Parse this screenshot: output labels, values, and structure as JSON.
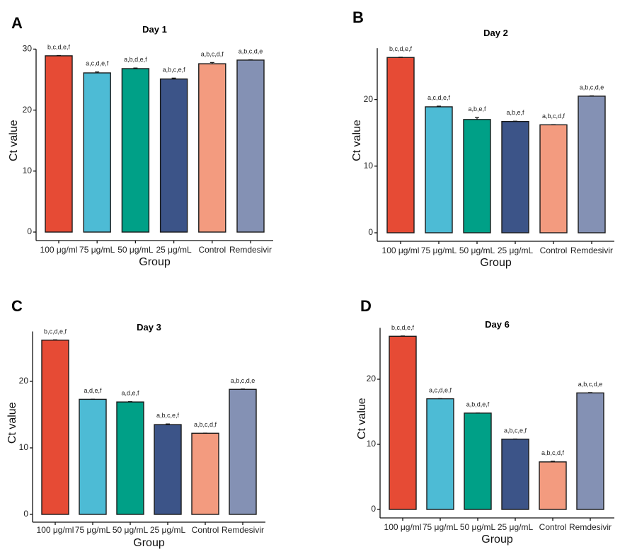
{
  "figure": {
    "palette": [
      "#E64B35",
      "#4DBBD5",
      "#00A087",
      "#3C5488",
      "#F39B7F",
      "#8491B4"
    ]
  },
  "chart_data": [
    {
      "panel": "A",
      "type": "bar",
      "title": "Day 1",
      "xlabel": "Group",
      "ylabel": "Ct value",
      "categories": [
        "100 μg/ml",
        "75 μg/mL",
        "50 μg/mL",
        "25 μg/mL",
        "Control",
        "Remdesivir"
      ],
      "values": [
        28.9,
        26.1,
        26.8,
        25.1,
        27.6,
        28.2
      ],
      "errors": [
        0.05,
        0.15,
        0.1,
        0.15,
        0.2,
        0.05
      ],
      "annotations": [
        "b,c,d,e,f",
        "a,c,d,e,f",
        "a,b,d,e,f",
        "a,b,c,e,f",
        "a,b,c,d,f",
        "a,b,c,d,e"
      ],
      "yticks": [
        0,
        10,
        20,
        30
      ],
      "ylim": [
        -1.4,
        30
      ],
      "grid": false
    },
    {
      "panel": "B",
      "type": "bar",
      "title": "Day 2",
      "xlabel": "Group",
      "ylabel": "Ct value",
      "categories": [
        "100 μg/ml",
        "75 μg/mL",
        "50 μg/mL",
        "25 μg/mL",
        "Control",
        "Remdesivir"
      ],
      "values": [
        26.3,
        18.9,
        17.0,
        16.7,
        16.2,
        20.5
      ],
      "errors": [
        0.05,
        0.1,
        0.3,
        0.05,
        0.02,
        0.05
      ],
      "annotations": [
        "b,c,d,e,f",
        "a,c,d,e,f",
        "a,b,e,f",
        "a,b,e,f",
        "a,b,c,d,f",
        "a,b,c,d,e"
      ],
      "yticks": [
        0,
        10,
        20
      ],
      "ylim": [
        -1.3,
        27.7
      ],
      "grid": false
    },
    {
      "panel": "C",
      "type": "bar",
      "title": "Day 3",
      "xlabel": "Group",
      "ylabel": "Ct value",
      "categories": [
        "100 μg/ml",
        "75 μg/mL",
        "50 μg/mL",
        "25 μg/mL",
        "Control",
        "Remdesivir"
      ],
      "values": [
        26.2,
        17.3,
        16.9,
        13.5,
        12.2,
        18.8
      ],
      "errors": [
        0.05,
        0.02,
        0.05,
        0.1,
        0.02,
        0.05
      ],
      "annotations": [
        "b,c,d,e,f",
        "a,d,e,f",
        "a,d,e,f",
        "a,b,c,e,f",
        "a,b,c,d,f",
        "a,b,c,d,e"
      ],
      "yticks": [
        0,
        10,
        20
      ],
      "ylim": [
        -1.2,
        27.5
      ],
      "grid": false
    },
    {
      "panel": "D",
      "type": "bar",
      "title": "Day 6",
      "xlabel": "Group",
      "ylabel": "Ct value",
      "categories": [
        "100 μg/ml",
        "75 μg/mL",
        "50 μg/mL",
        "25 μg/mL",
        "Control",
        "Remdesivir"
      ],
      "values": [
        26.6,
        17.0,
        14.8,
        10.8,
        7.3,
        17.9
      ],
      "errors": [
        0.05,
        0.02,
        0.02,
        0.02,
        0.1,
        0.05
      ],
      "annotations": [
        "b,c,d,e,f",
        "a,c,d,e,f",
        "a,b,d,e,f",
        "a,b,c,e,f",
        "a,b,c,d,f",
        "a,b,c,d,e"
      ],
      "yticks": [
        0,
        10,
        20
      ],
      "ylim": [
        -1.3,
        27.9
      ],
      "grid": false
    }
  ]
}
